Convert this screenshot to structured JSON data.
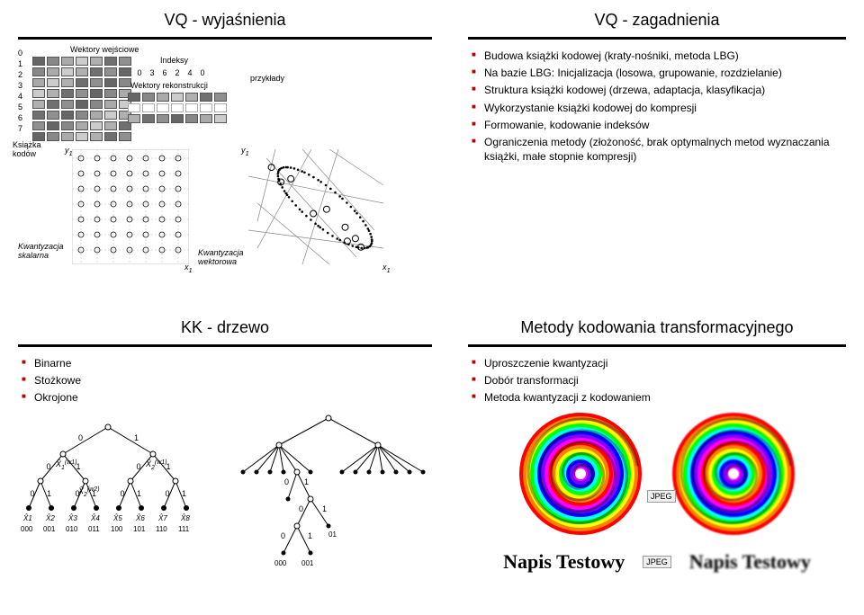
{
  "panels": {
    "tl": {
      "title": "VQ - wyjaśnienia",
      "labels": {
        "input_vectors": "Wektory wejściowe",
        "indices": "Indeksy",
        "recon_vectors": "Wektory rekonstrukcji",
        "codebook": "Książka kodów",
        "examples": "przykłady",
        "scalar_q": "Kwantyzacja skalarna",
        "vector_q": "Kwantyzacja wektorowa"
      },
      "left_numbers": [
        "0",
        "1",
        "2",
        "3",
        "4",
        "5",
        "6",
        "7"
      ],
      "idx_row": [
        "0",
        "3",
        "6",
        "2",
        "4",
        "0"
      ],
      "axis_y": "y",
      "axis_y_sub": "1",
      "axis_x": "x",
      "axis_x_sub": "1"
    },
    "tr": {
      "title": "VQ - zagadnienia",
      "bullets": [
        "Budowa książki kodowej (kraty-nośniki, metoda LBG)",
        "Na bazie LBG: Inicjalizacja (losowa, grupowanie, rozdzielanie)",
        "Struktura książki kodowej (drzewa, adaptacja, klasyfikacja)",
        "Wykorzystanie książki kodowej do kompresji",
        "Formowanie, kodowanie indeksów",
        "Ograniczenia metody (złożoność, brak optymalnych metod wyznaczania książki, małe stopnie kompresji)"
      ]
    },
    "bl": {
      "title": "KK - drzewo",
      "bullets": [
        "Binarne",
        "Stożkowe",
        "Okrojone"
      ],
      "tree1": {
        "top_labels": [
          "0",
          "1"
        ],
        "x_hat": "X̂",
        "leaf_codes": [
          "000",
          "001",
          "010",
          "011",
          "100",
          "101",
          "110",
          "111"
        ],
        "leaf_x": [
          "X̂1",
          "X̂2",
          "X̂3",
          "X̂4",
          "X̂5",
          "X̂6",
          "X̂7",
          "X̂8"
        ]
      },
      "tree2": {
        "labels_01": [
          "0",
          "1"
        ],
        "final_codes": [
          "000",
          "001"
        ],
        "final_01": "01"
      }
    },
    "br": {
      "title": "Metody kodowania transformacyjnego",
      "bullets": [
        "Uproszczenie kwantyzacji",
        "Dobór transformacji",
        "Metoda kwantyzacji z kodowaniem"
      ],
      "jpeg_label": "JPEG",
      "napis": "Napis Testowy"
    }
  },
  "colors": {
    "bullet": "#c00000",
    "rule": "#000000",
    "vec_grad": [
      "#666666",
      "#888888",
      "#aaaaaa",
      "#cccccc",
      "#b0b0b0",
      "#707070",
      "#909090"
    ],
    "rainbow": [
      "#ff0000",
      "#ff8000",
      "#ffff00",
      "#00ff00",
      "#00ffff",
      "#0000ff",
      "#8000ff",
      "#ff00ff"
    ]
  },
  "chart_style": {
    "title_fontsize": 18,
    "body_fontsize": 12,
    "small_fontsize": 9,
    "background": "#ffffff"
  }
}
